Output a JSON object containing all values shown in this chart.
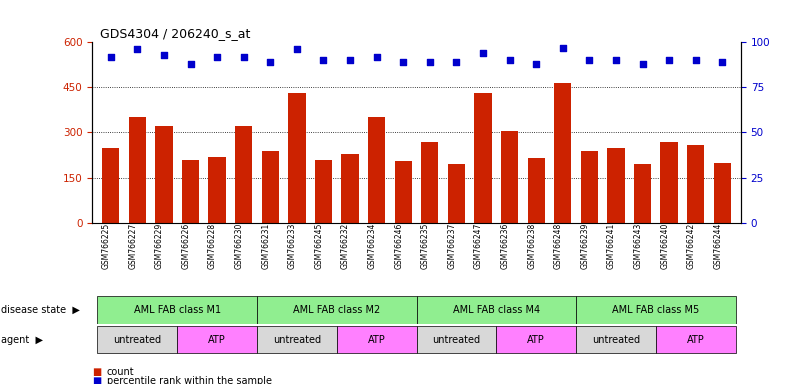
{
  "title": "GDS4304 / 206240_s_at",
  "samples": [
    "GSM766225",
    "GSM766227",
    "GSM766229",
    "GSM766226",
    "GSM766228",
    "GSM766230",
    "GSM766231",
    "GSM766233",
    "GSM766245",
    "GSM766232",
    "GSM766234",
    "GSM766246",
    "GSM766235",
    "GSM766237",
    "GSM766247",
    "GSM766236",
    "GSM766238",
    "GSM766248",
    "GSM766239",
    "GSM766241",
    "GSM766243",
    "GSM766240",
    "GSM766242",
    "GSM766244"
  ],
  "counts": [
    250,
    350,
    320,
    210,
    220,
    320,
    240,
    430,
    210,
    230,
    350,
    205,
    270,
    195,
    430,
    305,
    215,
    465,
    240,
    250,
    195,
    270,
    260,
    200
  ],
  "percentiles": [
    92,
    96,
    93,
    88,
    92,
    92,
    89,
    96,
    90,
    90,
    92,
    89,
    89,
    89,
    94,
    90,
    88,
    97,
    90,
    90,
    88,
    90,
    90,
    89
  ],
  "disease_state_groups": [
    {
      "label": "AML FAB class M1",
      "start": 0,
      "end": 5,
      "color": "#90EE90"
    },
    {
      "label": "AML FAB class M2",
      "start": 6,
      "end": 11,
      "color": "#90EE90"
    },
    {
      "label": "AML FAB class M4",
      "start": 12,
      "end": 17,
      "color": "#90EE90"
    },
    {
      "label": "AML FAB class M5",
      "start": 18,
      "end": 23,
      "color": "#90EE90"
    }
  ],
  "agent_groups": [
    {
      "label": "untreated",
      "start": 0,
      "end": 2,
      "color": "#D8D8D8"
    },
    {
      "label": "ATP",
      "start": 3,
      "end": 5,
      "color": "#FF80FF"
    },
    {
      "label": "untreated",
      "start": 6,
      "end": 8,
      "color": "#D8D8D8"
    },
    {
      "label": "ATP",
      "start": 9,
      "end": 11,
      "color": "#FF80FF"
    },
    {
      "label": "untreated",
      "start": 12,
      "end": 14,
      "color": "#D8D8D8"
    },
    {
      "label": "ATP",
      "start": 15,
      "end": 17,
      "color": "#FF80FF"
    },
    {
      "label": "untreated",
      "start": 18,
      "end": 20,
      "color": "#D8D8D8"
    },
    {
      "label": "ATP",
      "start": 21,
      "end": 23,
      "color": "#FF80FF"
    }
  ],
  "ylim_left": [
    0,
    600
  ],
  "yticks_left": [
    0,
    150,
    300,
    450,
    600
  ],
  "ylim_right": [
    0,
    100
  ],
  "yticks_right": [
    0,
    25,
    50,
    75,
    100
  ],
  "bar_color": "#CC2200",
  "dot_color": "#0000CC",
  "background_color": "#FFFFFF",
  "left_color": "#CC2200",
  "right_color": "#0000CC",
  "grid_lines": [
    150,
    300,
    450
  ]
}
